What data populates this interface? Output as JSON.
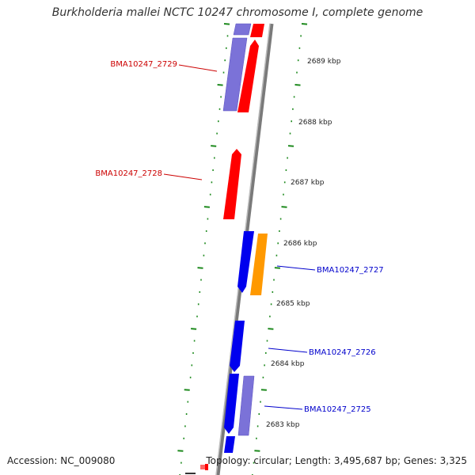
{
  "title": "Burkholderia mallei NCTC 10247 chromosome I, complete genome",
  "accession": "Accession: NC_009080",
  "topology": "Topology: circular; Length: 3,495,687 bp; Genes: 3,325",
  "colors": {
    "backbone": "#7a7a7a",
    "tick": "#1e8a1e",
    "label_red": "#cc0000",
    "label_blue": "#0000cc",
    "gene_red": "#ff0000",
    "gene_blue": "#0000ee",
    "gene_purple": "#7b72d8",
    "gene_orange": "#ff9900"
  },
  "kbp_labels": [
    "2689 kbp",
    "2688 kbp",
    "2687 kbp",
    "2686 kbp",
    "2685 kbp",
    "2684 kbp",
    "2683 kbp"
  ],
  "gene_labels": [
    {
      "text": "BMA10247_2729",
      "color": "red"
    },
    {
      "text": "BMA10247_2728",
      "color": "red"
    },
    {
      "text": "BMA10247_2727",
      "color": "blue"
    },
    {
      "text": "BMA10247_2726",
      "color": "blue"
    },
    {
      "text": "BMA10247_2725",
      "color": "blue"
    }
  ]
}
